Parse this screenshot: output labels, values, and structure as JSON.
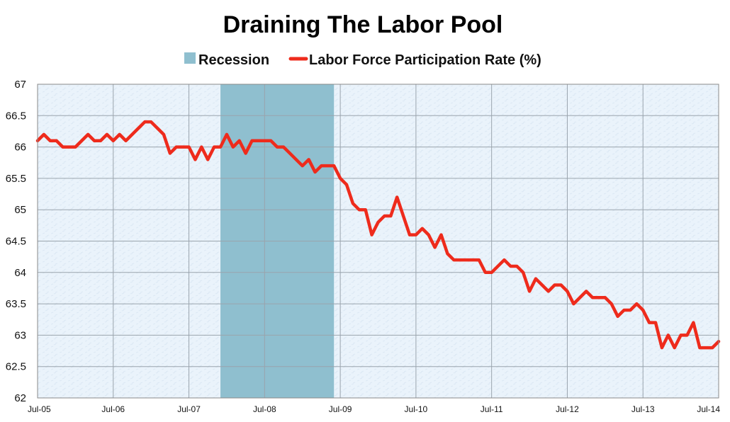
{
  "chart_data": {
    "type": "line",
    "title": "Draining The Labor Pool",
    "xlabel": "",
    "ylabel": "",
    "ylim": [
      62,
      67
    ],
    "yticks": [
      "62",
      "62.5",
      "63",
      "63.5",
      "64",
      "64.5",
      "65",
      "65.5",
      "66",
      "66.5",
      "67"
    ],
    "xticks": [
      "Jul-05",
      "Jul-06",
      "Jul-07",
      "Jul-08",
      "Jul-09",
      "Jul-10",
      "Jul-11",
      "Jul-12",
      "Jul-13",
      "Jul-14"
    ],
    "xlim": [
      "2005-07",
      "2014-07"
    ],
    "grid": true,
    "legend_position": "top-center",
    "legend": {
      "recession_label": "Recession",
      "series_label": "Labor Force Participation Rate (%)"
    },
    "recession": {
      "start": "2007-12",
      "end": "2009-06",
      "color": "#8fbfcf"
    },
    "series": [
      {
        "name": "Labor Force Participation Rate (%)",
        "color": "#ee2b1c",
        "points": [
          [
            "2005-07",
            66.1
          ],
          [
            "2005-08",
            66.2
          ],
          [
            "2005-09",
            66.1
          ],
          [
            "2005-10",
            66.1
          ],
          [
            "2005-11",
            66.0
          ],
          [
            "2005-12",
            66.0
          ],
          [
            "2006-01",
            66.0
          ],
          [
            "2006-02",
            66.1
          ],
          [
            "2006-03",
            66.2
          ],
          [
            "2006-04",
            66.1
          ],
          [
            "2006-05",
            66.1
          ],
          [
            "2006-06",
            66.2
          ],
          [
            "2006-07",
            66.1
          ],
          [
            "2006-08",
            66.2
          ],
          [
            "2006-09",
            66.1
          ],
          [
            "2006-10",
            66.2
          ],
          [
            "2006-11",
            66.3
          ],
          [
            "2006-12",
            66.4
          ],
          [
            "2007-01",
            66.4
          ],
          [
            "2007-02",
            66.3
          ],
          [
            "2007-03",
            66.2
          ],
          [
            "2007-04",
            65.9
          ],
          [
            "2007-05",
            66.0
          ],
          [
            "2007-06",
            66.0
          ],
          [
            "2007-07",
            66.0
          ],
          [
            "2007-08",
            65.8
          ],
          [
            "2007-09",
            66.0
          ],
          [
            "2007-10",
            65.8
          ],
          [
            "2007-11",
            66.0
          ],
          [
            "2007-12",
            66.0
          ],
          [
            "2008-01",
            66.2
          ],
          [
            "2008-02",
            66.0
          ],
          [
            "2008-03",
            66.1
          ],
          [
            "2008-04",
            65.9
          ],
          [
            "2008-05",
            66.1
          ],
          [
            "2008-06",
            66.1
          ],
          [
            "2008-07",
            66.1
          ],
          [
            "2008-08",
            66.1
          ],
          [
            "2008-09",
            66.0
          ],
          [
            "2008-10",
            66.0
          ],
          [
            "2008-11",
            65.9
          ],
          [
            "2008-12",
            65.8
          ],
          [
            "2009-01",
            65.7
          ],
          [
            "2009-02",
            65.8
          ],
          [
            "2009-03",
            65.6
          ],
          [
            "2009-04",
            65.7
          ],
          [
            "2009-05",
            65.7
          ],
          [
            "2009-06",
            65.7
          ],
          [
            "2009-07",
            65.5
          ],
          [
            "2009-08",
            65.4
          ],
          [
            "2009-09",
            65.1
          ],
          [
            "2009-10",
            65.0
          ],
          [
            "2009-11",
            65.0
          ],
          [
            "2009-12",
            64.6
          ],
          [
            "2010-01",
            64.8
          ],
          [
            "2010-02",
            64.9
          ],
          [
            "2010-03",
            64.9
          ],
          [
            "2010-04",
            65.2
          ],
          [
            "2010-05",
            64.9
          ],
          [
            "2010-06",
            64.6
          ],
          [
            "2010-07",
            64.6
          ],
          [
            "2010-08",
            64.7
          ],
          [
            "2010-09",
            64.6
          ],
          [
            "2010-10",
            64.4
          ],
          [
            "2010-11",
            64.6
          ],
          [
            "2010-12",
            64.3
          ],
          [
            "2011-01",
            64.2
          ],
          [
            "2011-02",
            64.2
          ],
          [
            "2011-03",
            64.2
          ],
          [
            "2011-04",
            64.2
          ],
          [
            "2011-05",
            64.2
          ],
          [
            "2011-06",
            64.0
          ],
          [
            "2011-07",
            64.0
          ],
          [
            "2011-08",
            64.1
          ],
          [
            "2011-09",
            64.2
          ],
          [
            "2011-10",
            64.1
          ],
          [
            "2011-11",
            64.1
          ],
          [
            "2011-12",
            64.0
          ],
          [
            "2012-01",
            63.7
          ],
          [
            "2012-02",
            63.9
          ],
          [
            "2012-03",
            63.8
          ],
          [
            "2012-04",
            63.7
          ],
          [
            "2012-05",
            63.8
          ],
          [
            "2012-06",
            63.8
          ],
          [
            "2012-07",
            63.7
          ],
          [
            "2012-08",
            63.5
          ],
          [
            "2012-09",
            63.6
          ],
          [
            "2012-10",
            63.7
          ],
          [
            "2012-11",
            63.6
          ],
          [
            "2012-12",
            63.6
          ],
          [
            "2013-01",
            63.6
          ],
          [
            "2013-02",
            63.5
          ],
          [
            "2013-03",
            63.3
          ],
          [
            "2013-04",
            63.4
          ],
          [
            "2013-05",
            63.4
          ],
          [
            "2013-06",
            63.5
          ],
          [
            "2013-07",
            63.4
          ],
          [
            "2013-08",
            63.2
          ],
          [
            "2013-09",
            63.2
          ],
          [
            "2013-10",
            62.8
          ],
          [
            "2013-11",
            63.0
          ],
          [
            "2013-12",
            62.8
          ],
          [
            "2014-01",
            63.0
          ],
          [
            "2014-02",
            63.0
          ],
          [
            "2014-03",
            63.2
          ],
          [
            "2014-04",
            62.8
          ],
          [
            "2014-05",
            62.8
          ],
          [
            "2014-06",
            62.8
          ],
          [
            "2014-07",
            62.9
          ]
        ]
      }
    ]
  }
}
